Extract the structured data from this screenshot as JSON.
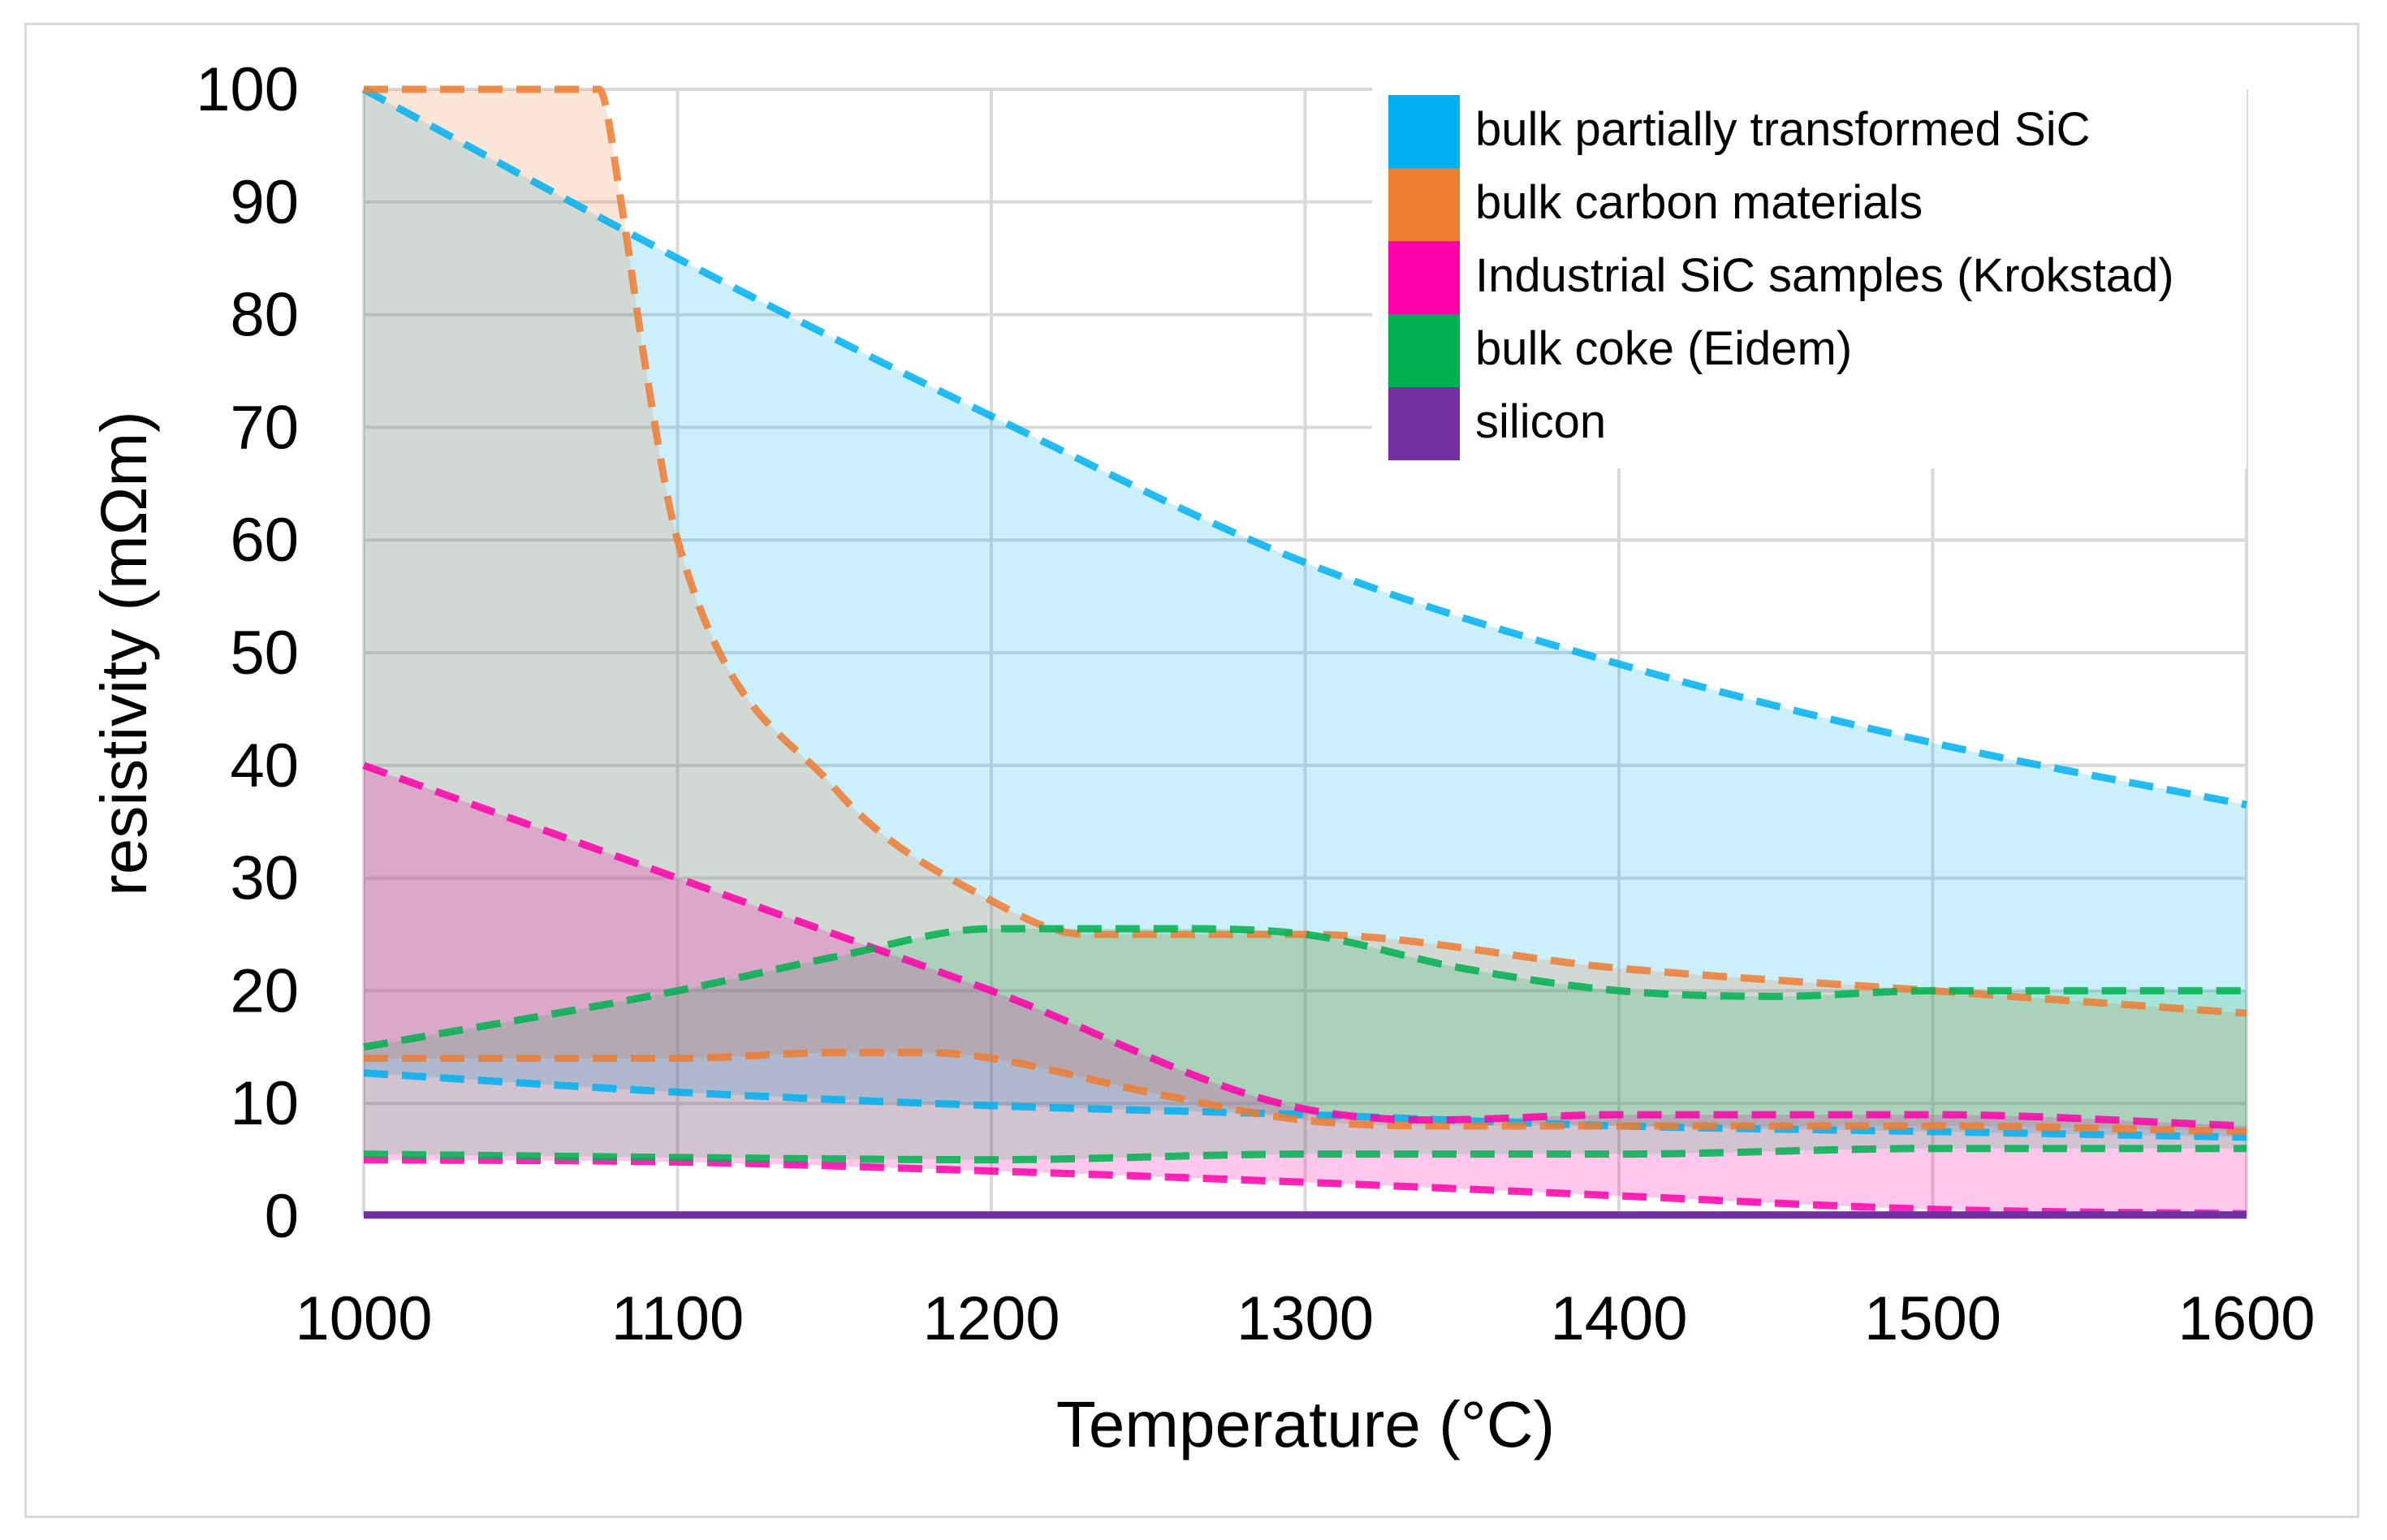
{
  "chart_data": {
    "type": "area",
    "xlabel": "Temperature (°C)",
    "ylabel": "resistivity (mΩm)",
    "xlim": [
      1000,
      1600
    ],
    "ylim": [
      0,
      100
    ],
    "x_ticks": [
      1000,
      1100,
      1200,
      1300,
      1400,
      1500,
      1600
    ],
    "y_ticks": [
      0,
      10,
      20,
      30,
      40,
      50,
      60,
      70,
      80,
      90,
      100
    ],
    "grid": true,
    "legend_position": "top-right",
    "legend": [
      {
        "label": "bulk partially transformed SiC",
        "color": "#00b0f0"
      },
      {
        "label": "bulk carbon materials",
        "color": "#ed7d31"
      },
      {
        "label": "Industrial SiC samples (Krokstad)",
        "color": "#ff00aa"
      },
      {
        "label": "bulk coke (Eidem)",
        "color": "#00b050"
      },
      {
        "label": "silicon",
        "color": "#7030a0"
      }
    ],
    "bands": [
      {
        "name": "bulk partially transformed SiC",
        "color": "#00b0f0",
        "fill_opacity": 0.2,
        "upper": {
          "x": [
            1000,
            1100,
            1200,
            1300,
            1400,
            1500,
            1600
          ],
          "y": [
            100,
            85,
            71,
            58,
            49,
            42,
            36.5
          ]
        },
        "lower": {
          "x": [
            1000,
            1100,
            1200,
            1300,
            1400,
            1500,
            1600
          ],
          "y": [
            12.7,
            11,
            9.8,
            9,
            8,
            7.5,
            7
          ]
        }
      },
      {
        "name": "bulk carbon materials",
        "color": "#ed7d31",
        "fill_opacity": 0.2,
        "upper": {
          "x": [
            1000,
            1060,
            1075,
            1082,
            1090,
            1100,
            1150,
            1200,
            1230,
            1300,
            1400,
            1500,
            1600
          ],
          "y": [
            100,
            100,
            100,
            90,
            75,
            60,
            38,
            28,
            25,
            25,
            22,
            20,
            18
          ]
        },
        "lower": {
          "x": [
            1000,
            1100,
            1150,
            1180,
            1200,
            1250,
            1300,
            1350,
            1400,
            1500,
            1600
          ],
          "y": [
            14,
            14,
            14.5,
            14.5,
            14,
            11,
            8.5,
            8,
            8,
            8,
            7.5
          ]
        }
      },
      {
        "name": "Industrial SiC samples (Krokstad)",
        "color": "#ff00aa",
        "fill_opacity": 0.22,
        "upper": {
          "x": [
            1000,
            1100,
            1200,
            1300,
            1400,
            1500,
            1600
          ],
          "y": [
            40,
            30,
            20,
            9.5,
            9,
            9,
            8
          ]
        },
        "lower": {
          "x": [
            1000,
            1100,
            1200,
            1300,
            1400,
            1500,
            1600
          ],
          "y": [
            5,
            4.8,
            4,
            3,
            1.8,
            0.6,
            0.2
          ]
        }
      },
      {
        "name": "bulk coke (Eidem)",
        "color": "#00b050",
        "fill_opacity": 0.18,
        "upper": {
          "x": [
            1000,
            1100,
            1150,
            1200,
            1250,
            1300,
            1350,
            1400,
            1450,
            1500,
            1600
          ],
          "y": [
            15,
            20,
            23,
            25.5,
            25.5,
            25,
            22,
            20,
            19.5,
            20,
            20
          ]
        },
        "lower": {
          "x": [
            1000,
            1100,
            1200,
            1300,
            1400,
            1500,
            1600
          ],
          "y": [
            5.5,
            5.2,
            5,
            5.5,
            5.5,
            6,
            6
          ]
        }
      }
    ],
    "lines": [
      {
        "name": "silicon",
        "color": "#7030a0",
        "x": [
          1000,
          1600
        ],
        "y": [
          0.1,
          0.1
        ]
      }
    ]
  }
}
